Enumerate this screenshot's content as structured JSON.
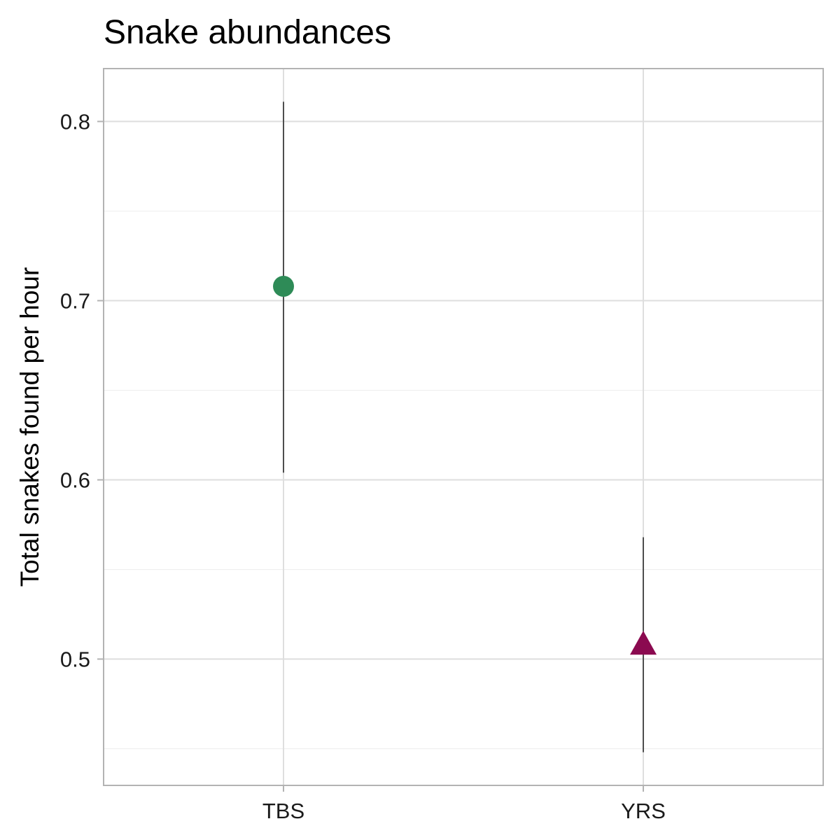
{
  "chart_data": {
    "type": "scatter",
    "title": "Snake abundances",
    "xlabel": "",
    "ylabel": "Total snakes found per hour",
    "categories": [
      "TBS",
      "YRS"
    ],
    "points": [
      {
        "category": "TBS",
        "value": 0.708,
        "lower": 0.604,
        "upper": 0.811,
        "shape": "circle",
        "color": "#2e8b57"
      },
      {
        "category": "YRS",
        "value": 0.508,
        "lower": 0.448,
        "upper": 0.568,
        "shape": "triangle",
        "color": "#8b0a50"
      }
    ],
    "ylim": [
      0.4295,
      0.8295
    ],
    "yticks": [
      0.5,
      0.6,
      0.7,
      0.8
    ],
    "ytick_labels": [
      "0.5",
      "0.6",
      "0.7",
      "0.8"
    ],
    "y_minor_gridlines": [
      0.45,
      0.55,
      0.65,
      0.75
    ],
    "grid": true,
    "legend": "none",
    "colors": {
      "panel_border": "#b3b3b3",
      "grid_major": "#dedede",
      "grid_minor": "#efefef",
      "errorbar": "#000000"
    }
  }
}
